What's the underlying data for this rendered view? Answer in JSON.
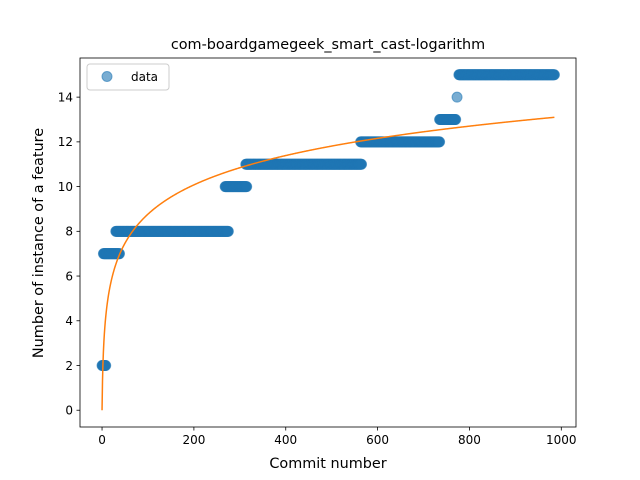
{
  "chart_data": {
    "type": "scatter",
    "title": "com-boardgamegeek_smart_cast-logarithm",
    "xlabel": "Commit number",
    "ylabel": "Number of instance of a feature",
    "xlim": [
      -48,
      1032
    ],
    "ylim": [
      -0.75,
      15.75
    ],
    "xticks": [
      0,
      200,
      400,
      600,
      800,
      1000
    ],
    "yticks": [
      0,
      2,
      4,
      6,
      8,
      10,
      12,
      14
    ],
    "legend": {
      "entries": [
        "data"
      ],
      "position": "top-left"
    },
    "series": [
      {
        "name": "data",
        "kind": "scatter",
        "color": "#1f77b4",
        "segments": [
          {
            "x_start": 0,
            "x_end": 8,
            "y": 2
          },
          {
            "x_start": 3,
            "x_end": 38,
            "y": 7
          },
          {
            "x_start": 30,
            "x_end": 275,
            "y": 8
          },
          {
            "x_start": 268,
            "x_end": 315,
            "y": 10
          },
          {
            "x_start": 313,
            "x_end": 565,
            "y": 11
          },
          {
            "x_start": 563,
            "x_end": 735,
            "y": 12
          },
          {
            "x_start": 735,
            "x_end": 770,
            "y": 13
          },
          {
            "x_start": 773,
            "x_end": 773,
            "y": 14
          },
          {
            "x_start": 777,
            "x_end": 985,
            "y": 15
          }
        ]
      },
      {
        "name": "",
        "kind": "line",
        "color": "#ff7f0e",
        "model": "logarithmic",
        "a": 1.9,
        "b": 0,
        "x_range": [
          0,
          985
        ]
      }
    ]
  }
}
